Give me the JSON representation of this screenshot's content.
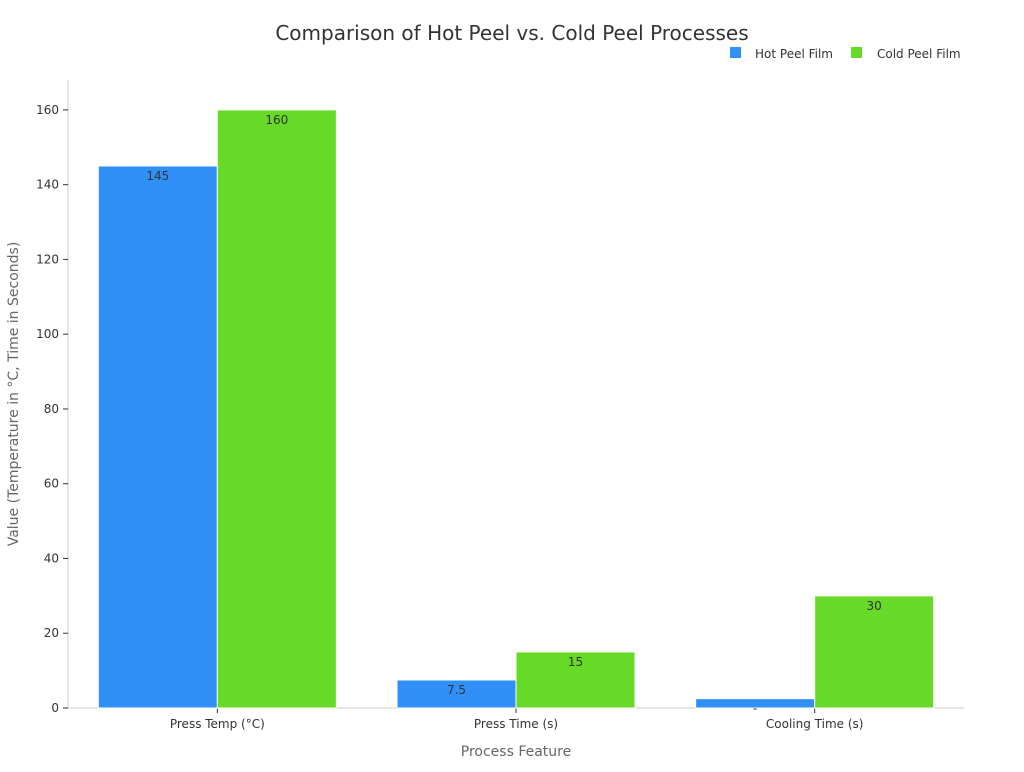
{
  "chart_data": {
    "type": "bar",
    "title": "Comparison of Hot Peel vs. Cold Peel Processes",
    "xlabel": "Process Feature",
    "ylabel": "Value (Temperature in °C, Time in Seconds)",
    "categories": [
      "Press Temp (°C)",
      "Press Time (s)",
      "Cooling Time (s)"
    ],
    "series": [
      {
        "name": "Hot Peel Film",
        "color": "#3090f8",
        "values": [
          145,
          7.5,
          2.5
        ],
        "labels": [
          "145",
          "7.5",
          "-"
        ]
      },
      {
        "name": "Cold Peel Film",
        "color": "#66da26",
        "values": [
          160,
          15,
          30
        ],
        "labels": [
          "160",
          "15",
          "30"
        ]
      }
    ],
    "ylim": [
      0,
      168
    ],
    "yticks": [
      0,
      20,
      40,
      60,
      80,
      100,
      120,
      140,
      160
    ],
    "grid": false,
    "legend_position": "top-right"
  }
}
